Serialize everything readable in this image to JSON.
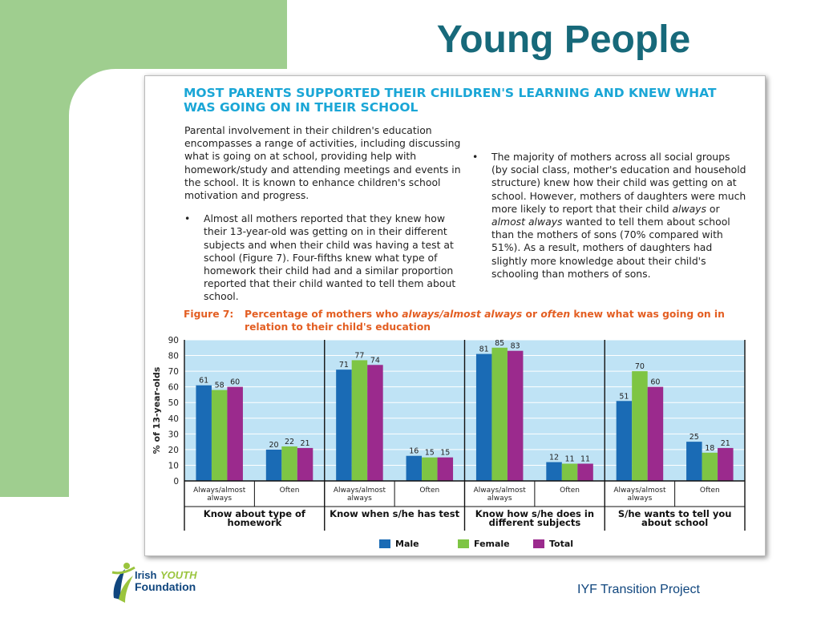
{
  "slide": {
    "title": "Young People"
  },
  "document": {
    "heading_line1": "MOST PARENTS SUPPORTED THEIR CHILDREN'S LEARNING AND KNEW WHAT",
    "heading_line2": "WAS GOING ON IN THEIR SCHOOL",
    "intro": "Parental involvement in their children's education encompasses a range of activities, including discussing what is going on at school, providing help with homework/study and attending meetings and events in the school. It is known to enhance children's school motivation and progress.",
    "bullet1": "Almost all mothers reported that they knew how their 13-year-old was getting on in their different subjects and when their child was having a test at school (Figure 7). Four-fifths knew what type of homework their child had and a similar proportion reported that their child wanted to tell them about school.",
    "bullet2_a": "The majority of mothers across all social groups (by social class, mother's education and household structure) knew how their child was getting on at school. However, mothers of daughters were much more likely to report that their child ",
    "bullet2_em1": "always",
    "bullet2_b": " or ",
    "bullet2_em2": "almost always",
    "bullet2_c": " wanted to tell them about school than the mothers of sons (70% compared with 51%). As a result, mothers of daughters had slightly more knowledge about their child's schooling than mothers of sons.",
    "bullet_symbol": "•"
  },
  "figure": {
    "number": "Figure 7:",
    "caption_a": "Percentage of mothers who ",
    "caption_em1": "always/almost always",
    "caption_b": " or ",
    "caption_em2": "often",
    "caption_c": " knew what was going on in relation to their child's education"
  },
  "chart_data": {
    "type": "bar",
    "ylabel": "% of 13-year-olds",
    "ylim": [
      0,
      90
    ],
    "yticks": [
      0,
      10,
      20,
      30,
      40,
      50,
      60,
      70,
      80,
      90
    ],
    "grid": true,
    "legend_position": "bottom",
    "groups": [
      {
        "label": "Know about type of homework",
        "sub": [
          "Always/almost always",
          "Often"
        ]
      },
      {
        "label": "Know when s/he has test",
        "sub": [
          "Always/almost always",
          "Often"
        ]
      },
      {
        "label": "Know how s/he does in different subjects",
        "sub": [
          "Always/almost always",
          "Often"
        ]
      },
      {
        "label": "S/he wants to tell you about school",
        "sub": [
          "Always/almost always",
          "Often"
        ]
      }
    ],
    "series": [
      {
        "name": "Male",
        "color": "#1a6bb5",
        "values": [
          61,
          20,
          71,
          16,
          81,
          12,
          51,
          25
        ]
      },
      {
        "name": "Female",
        "color": "#7ec544",
        "values": [
          58,
          22,
          77,
          15,
          85,
          11,
          70,
          18
        ]
      },
      {
        "name": "Total",
        "color": "#9b2a8d",
        "values": [
          60,
          21,
          74,
          15,
          83,
          11,
          60,
          21
        ]
      }
    ],
    "plot_background": "#bfe3f5"
  },
  "footer": {
    "logo_irish": "Irish",
    "logo_youth": "YOUTH",
    "logo_foundation": "Foundation",
    "project": "IYF Transition Project"
  }
}
